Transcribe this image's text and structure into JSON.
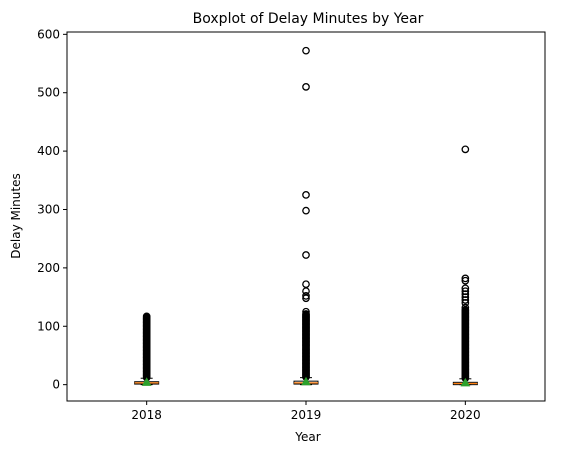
{
  "chart_data": {
    "type": "boxplot",
    "title": "Boxplot of Delay Minutes by Year",
    "xlabel": "Year",
    "ylabel": "Delay Minutes",
    "categories": [
      "2018",
      "2019",
      "2020"
    ],
    "ylim": [
      -28,
      604
    ],
    "yticks": [
      0,
      100,
      200,
      300,
      400,
      500,
      600
    ],
    "grid": false,
    "show_means": true,
    "colors": {
      "box": "#000000",
      "median": "#ff7f0e",
      "mean": "#2ca02c",
      "flier": "#000000"
    },
    "boxes": [
      {
        "category": "2018",
        "whislo": 0,
        "q1": 1,
        "med": 3,
        "q3": 5,
        "whishi": 11,
        "mean": 4,
        "flier_range": [
          12,
          118
        ],
        "fliers": []
      },
      {
        "category": "2019",
        "whislo": 0,
        "q1": 1,
        "med": 3,
        "q3": 6,
        "whishi": 12,
        "mean": 5,
        "flier_range": [
          13,
          122
        ],
        "fliers": [
          125,
          148,
          152,
          160,
          172,
          222,
          298,
          325,
          510,
          572
        ]
      },
      {
        "category": "2020",
        "whislo": 0,
        "q1": 0,
        "med": 2,
        "q3": 4,
        "whishi": 10,
        "mean": 3,
        "flier_range": [
          11,
          128
        ],
        "fliers": [
          132,
          140,
          145,
          150,
          155,
          160,
          165,
          178,
          182,
          403
        ]
      }
    ]
  }
}
